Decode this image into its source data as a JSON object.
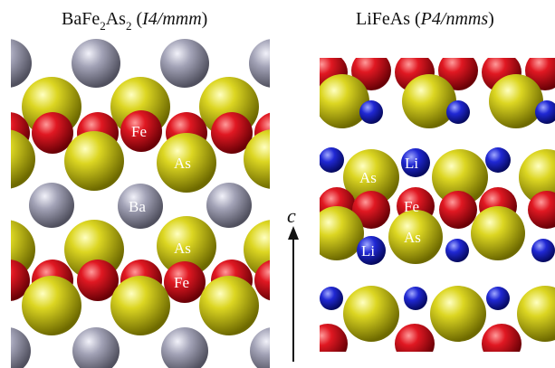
{
  "left_panel": {
    "formula": "BaFe",
    "sub1": "2",
    "mid": "As",
    "sub2": "2",
    "space_group_open": " (",
    "space_group": "I4/mmm",
    "space_group_close": ")"
  },
  "right_panel": {
    "formula": "LiFeAs",
    "space_group_open": " (",
    "space_group_prefix": "P",
    "space_group": "4/nmms",
    "space_group_close": ")"
  },
  "labels": {
    "fe": "Fe",
    "as": "As",
    "ba": "Ba",
    "li": "Li"
  },
  "axis": {
    "label": "c"
  },
  "colors": {
    "fe": "#d0101c",
    "as": "#d8d21c",
    "ba": "#9a9aae",
    "li": "#1c22c8"
  }
}
